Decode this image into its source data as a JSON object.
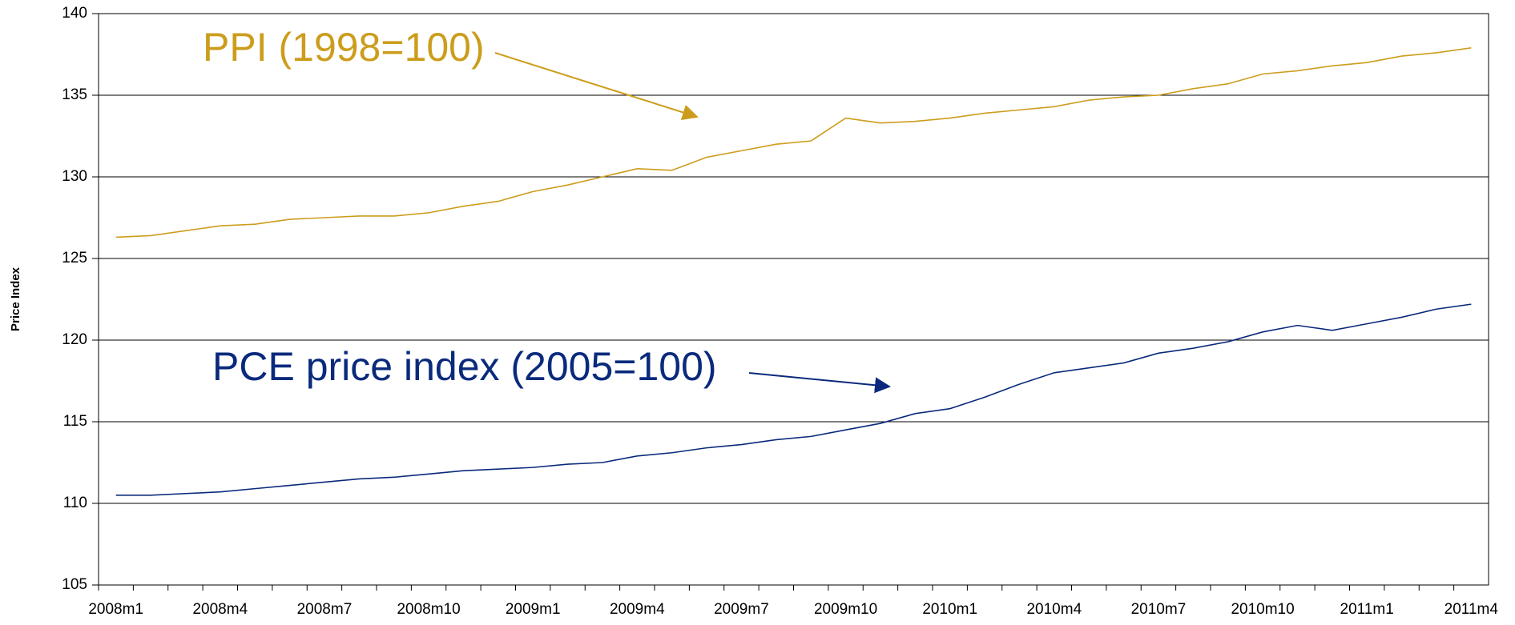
{
  "chart_data": {
    "type": "line",
    "y_label": "Price Index",
    "categories": [
      "2008m1",
      null,
      null,
      "2008m4",
      null,
      null,
      "2008m7",
      null,
      null,
      "2008m10",
      null,
      null,
      "2009m1",
      null,
      null,
      "2009m4",
      null,
      null,
      "2009m7",
      null,
      null,
      "2009m10",
      null,
      null,
      "2010m1",
      null,
      null,
      "2010m4",
      null,
      null,
      "2010m7",
      null,
      null,
      "2010m10",
      null,
      null,
      "2011m1",
      null,
      null,
      "2011m4"
    ],
    "series": [
      {
        "name": "PPI (1998=100)",
        "color": "#cc9d1c",
        "values": [
          126.3,
          126.4,
          126.7,
          127.0,
          127.1,
          127.4,
          127.5,
          127.6,
          127.6,
          127.8,
          128.2,
          128.5,
          129.1,
          129.5,
          130.0,
          130.5,
          130.4,
          131.2,
          131.6,
          132.0,
          132.2,
          133.6,
          133.3,
          133.4,
          133.6,
          133.9,
          134.1,
          134.3,
          134.7,
          134.9,
          135.0,
          135.4,
          135.7,
          136.3,
          136.5,
          136.8,
          137.0,
          137.4,
          137.6,
          137.9
        ]
      },
      {
        "name": "PCE price index (2005=100)",
        "color": "#0a2a7c",
        "values": [
          110.5,
          110.5,
          110.6,
          110.7,
          110.9,
          111.1,
          111.3,
          111.5,
          111.6,
          111.8,
          112.0,
          112.1,
          112.2,
          112.4,
          112.5,
          112.9,
          113.1,
          113.4,
          113.6,
          113.9,
          114.1,
          114.5,
          114.9,
          115.5,
          115.8,
          116.5,
          117.3,
          118.0,
          118.3,
          118.6,
          119.2,
          119.5,
          119.9,
          120.5,
          120.9,
          120.6,
          121.0,
          121.4,
          121.9,
          122.2
        ]
      }
    ],
    "ylim": [
      105,
      140
    ],
    "yticks": [
      105,
      110,
      115,
      120,
      125,
      130,
      135,
      140
    ],
    "grid": true
  }
}
